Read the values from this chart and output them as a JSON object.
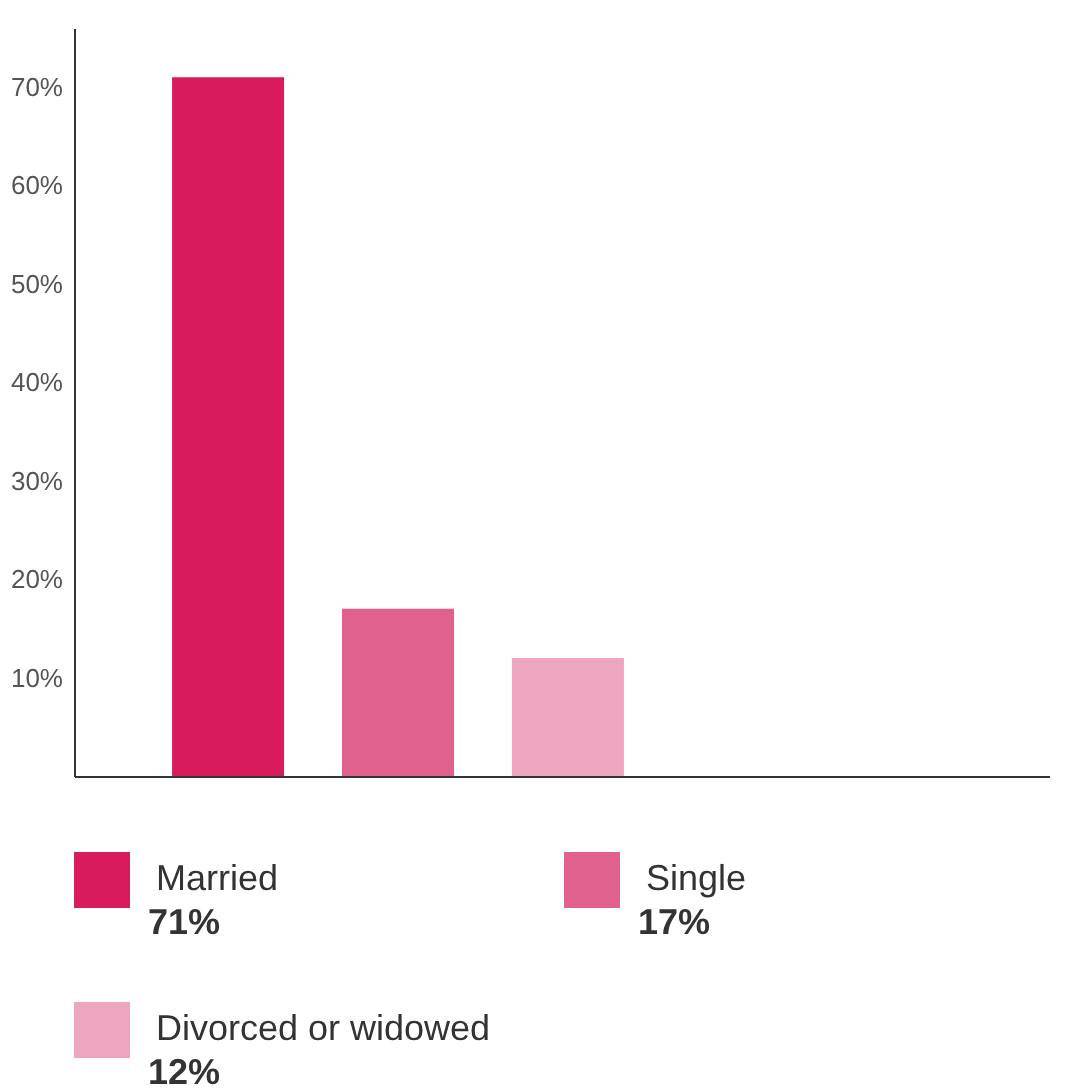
{
  "chart_data": {
    "type": "bar",
    "categories": [
      null
    ],
    "series": [
      {
        "name": "Married",
        "color": "#d81b5c",
        "values": [
          71
        ]
      },
      {
        "name": "Single",
        "color": "#e0608e",
        "values": [
          17
        ]
      },
      {
        "name": "Divorced or widowed",
        "color": "#eea6c0",
        "values": [
          12
        ]
      }
    ],
    "annotations": [
      "71%",
      "17%",
      "12%"
    ],
    "ylim": [
      0,
      76
    ],
    "yticks": [
      {
        "value": 10,
        "label": "10%"
      },
      {
        "value": 20,
        "label": "20%"
      },
      {
        "value": 30,
        "label": "30%"
      },
      {
        "value": 40,
        "label": "40%"
      },
      {
        "value": 50,
        "label": "50%"
      },
      {
        "value": 60,
        "label": "60%"
      },
      {
        "value": 70,
        "label": "70%"
      }
    ],
    "tick_labels": "y",
    "grid": false,
    "legend": "bottom"
  }
}
